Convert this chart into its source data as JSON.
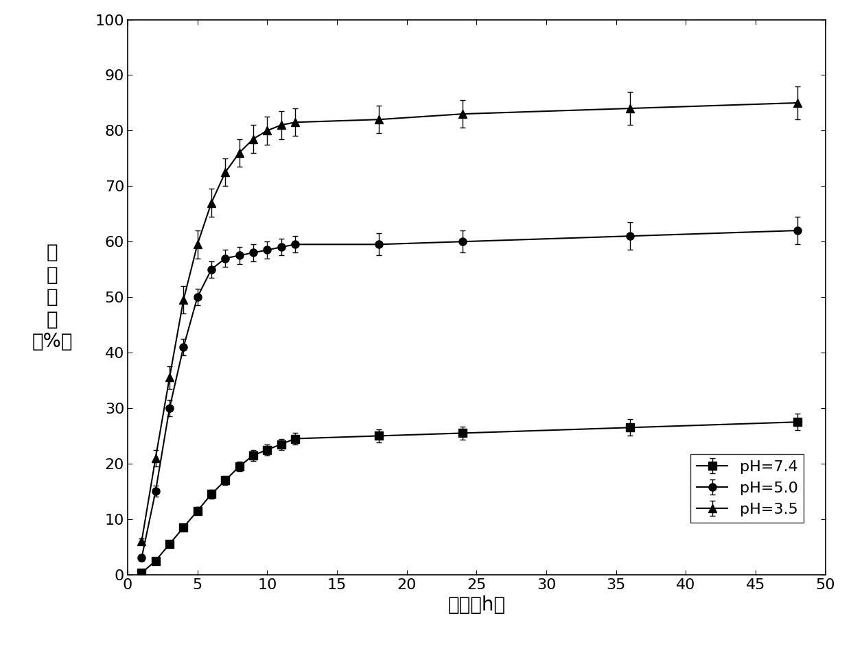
{
  "title": "",
  "xlabel": "时间（h）",
  "ylabel_lines": [
    "药",
    "物",
    "释",
    "放",
    "（%）"
  ],
  "xlim": [
    0,
    50
  ],
  "ylim": [
    0,
    100
  ],
  "xticks": [
    0,
    5,
    10,
    15,
    20,
    25,
    30,
    35,
    40,
    45,
    50
  ],
  "yticks": [
    0,
    10,
    20,
    30,
    40,
    50,
    60,
    70,
    80,
    90,
    100
  ],
  "background_color": "#ffffff",
  "line_color": "#000000",
  "series": [
    {
      "label": "pH=7.4",
      "marker": "s",
      "x": [
        1,
        2,
        3,
        4,
        5,
        6,
        7,
        8,
        9,
        10,
        11,
        12,
        18,
        24,
        36,
        48
      ],
      "y": [
        0.3,
        2.5,
        5.5,
        8.5,
        11.5,
        14.5,
        17.0,
        19.5,
        21.5,
        22.5,
        23.5,
        24.5,
        25.0,
        25.5,
        26.5,
        27.5
      ],
      "yerr": [
        0.3,
        0.4,
        0.5,
        0.6,
        0.7,
        0.8,
        0.8,
        0.9,
        1.0,
        1.0,
        1.0,
        1.0,
        1.2,
        1.2,
        1.5,
        1.5
      ]
    },
    {
      "label": "pH=5.0",
      "marker": "o",
      "x": [
        1,
        2,
        3,
        4,
        5,
        6,
        7,
        8,
        9,
        10,
        11,
        12,
        18,
        24,
        36,
        48
      ],
      "y": [
        3.0,
        15.0,
        30.0,
        41.0,
        50.0,
        55.0,
        57.0,
        57.5,
        58.0,
        58.5,
        59.0,
        59.5,
        59.5,
        60.0,
        61.0,
        62.0
      ],
      "yerr": [
        0.5,
        1.0,
        1.5,
        1.5,
        1.5,
        1.5,
        1.5,
        1.5,
        1.5,
        1.5,
        1.5,
        1.5,
        2.0,
        2.0,
        2.5,
        2.5
      ]
    },
    {
      "label": "pH=3.5",
      "marker": "^",
      "x": [
        1,
        2,
        3,
        4,
        5,
        6,
        7,
        8,
        9,
        10,
        11,
        12,
        18,
        24,
        36,
        48
      ],
      "y": [
        6.0,
        21.0,
        35.5,
        49.5,
        59.5,
        67.0,
        72.5,
        76.0,
        78.5,
        80.0,
        81.0,
        81.5,
        82.0,
        83.0,
        84.0,
        85.0
      ],
      "yerr": [
        0.5,
        1.5,
        2.0,
        2.5,
        2.5,
        2.5,
        2.5,
        2.5,
        2.5,
        2.5,
        2.5,
        2.5,
        2.5,
        2.5,
        3.0,
        3.0
      ]
    }
  ],
  "markersize": 8,
  "linewidth": 1.5,
  "capsize": 3,
  "fontsize_label": 20,
  "fontsize_tick": 16,
  "fontsize_legend": 16
}
